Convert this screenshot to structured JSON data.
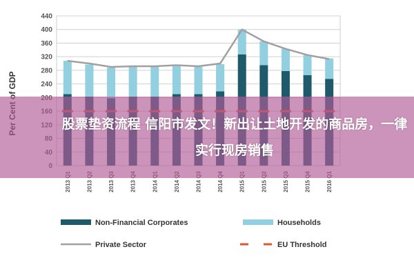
{
  "chart_data": {
    "type": "bar",
    "stacked": true,
    "ylabel": "Per Cent of GDP",
    "ylim": [
      0,
      440
    ],
    "yticks": [
      0,
      40,
      80,
      120,
      160,
      200,
      240,
      280,
      320,
      360,
      400,
      440
    ],
    "grid": true,
    "legend_position": "bottom",
    "categories": [
      "2013 Q1",
      "2013 Q2",
      "2013 Q3",
      "2013 Q4",
      "2014 Q1",
      "2014 Q2",
      "2014 Q3",
      "2014 Q4",
      "2015 Q1",
      "2015 Q2",
      "2015 Q3",
      "2015 Q4",
      "2016 Q1"
    ],
    "series": [
      {
        "name": "Non-Financial Corporates",
        "type": "bar",
        "color": "#1f5a6b",
        "values": [
          210,
          203,
          198,
          203,
          203,
          210,
          210,
          218,
          327,
          295,
          278,
          266,
          255
        ]
      },
      {
        "name": "Households",
        "type": "bar",
        "color": "#92cfe0",
        "values": [
          98,
          94,
          90,
          87,
          87,
          82,
          80,
          80,
          73,
          70,
          65,
          59,
          60
        ]
      },
      {
        "name": "Private Sector",
        "type": "line",
        "color": "#a0a0a0",
        "values": [
          308,
          300,
          290,
          292,
          292,
          295,
          292,
          300,
          400,
          365,
          343,
          325,
          313
        ]
      },
      {
        "name": "EU Threshold",
        "type": "dashed-line",
        "color": "#e0552a",
        "values": [
          160,
          160,
          160,
          160,
          160,
          160,
          160,
          160,
          160,
          160,
          160,
          160,
          160
        ]
      }
    ]
  },
  "banner": {
    "headline": "股票垫资流程 信阳市发文！新出让土地开发的商品房，一律实行现房销售"
  }
}
